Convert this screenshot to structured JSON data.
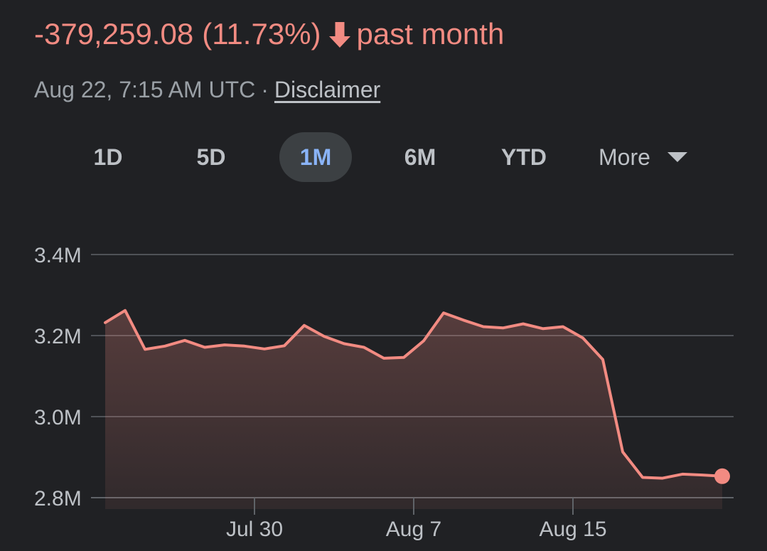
{
  "header": {
    "change_value": "-379,259.08",
    "change_percent": "(11.73%)",
    "period": "past month",
    "timestamp": "Aug 22, 7:15 AM UTC",
    "separator": "·",
    "disclaimer": "Disclaimer"
  },
  "tabs": [
    {
      "label": "1D",
      "active": false
    },
    {
      "label": "5D",
      "active": false
    },
    {
      "label": "1M",
      "active": true
    },
    {
      "label": "6M",
      "active": false
    },
    {
      "label": "YTD",
      "active": false
    },
    {
      "label": "More",
      "active": false
    }
  ],
  "colors": {
    "line": "#f28b82",
    "fill": "#f28b82",
    "grid": "#5f6368",
    "background": "#202124",
    "active_tab": "#8ab4f8"
  },
  "icons": {
    "change_direction": "arrow-down-icon",
    "more": "caret-down-icon"
  },
  "chart_data": {
    "type": "area",
    "title": "",
    "xlabel": "",
    "ylabel": "",
    "ylim": [
      2.8,
      3.4
    ],
    "y_unit": "M",
    "y_ticks": [
      "2.8M",
      "3.0M",
      "3.2M",
      "3.4M"
    ],
    "y_tick_values": [
      2.8,
      3.0,
      3.2,
      3.4
    ],
    "x_ticks": [
      {
        "label": "Jul 30",
        "index": 7.5
      },
      {
        "label": "Aug 7",
        "index": 15.5
      },
      {
        "label": "Aug 15",
        "index": 23.5
      }
    ],
    "grid": true,
    "series": [
      {
        "values": [
          3.232,
          3.262,
          3.166,
          3.174,
          3.188,
          3.171,
          3.177,
          3.174,
          3.167,
          3.175,
          3.225,
          3.198,
          3.18,
          3.171,
          3.144,
          3.146,
          3.187,
          3.256,
          3.238,
          3.222,
          3.219,
          3.229,
          3.217,
          3.222,
          3.194,
          3.141,
          2.913,
          2.85,
          2.848,
          2.858,
          2.856,
          2.853
        ]
      }
    ]
  }
}
